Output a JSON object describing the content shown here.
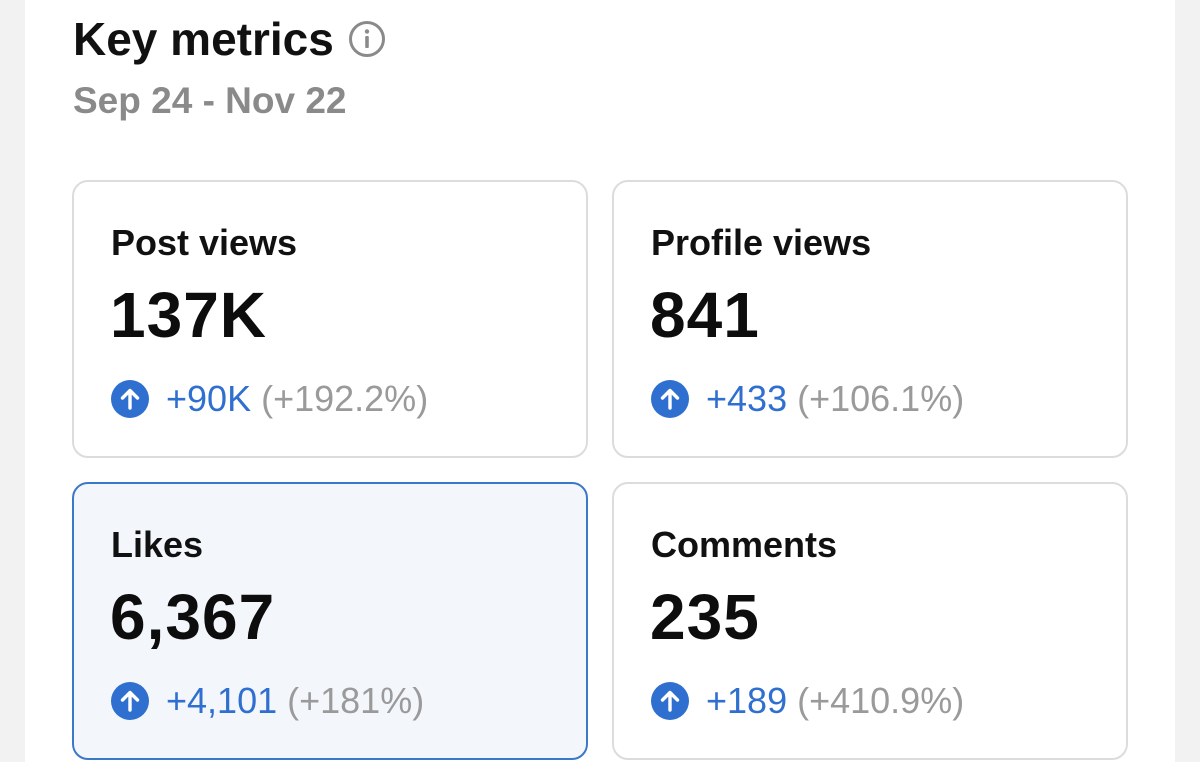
{
  "header": {
    "title": "Key metrics",
    "info_icon": "info-circle-icon",
    "date_range": "Sep 24 - Nov 22"
  },
  "colors": {
    "accent": "#2f6fcf",
    "selected_border": "#3b78c8",
    "selected_background": "#f3f7fc",
    "muted_text": "#9a9a9a"
  },
  "metrics": [
    {
      "label": "Post views",
      "value": "137K",
      "delta_icon": "arrow-up-circle-icon",
      "delta": "+90K",
      "delta_percent": "(+192.2%)",
      "selected": false
    },
    {
      "label": "Profile views",
      "value": "841",
      "delta_icon": "arrow-up-circle-icon",
      "delta": "+433",
      "delta_percent": "(+106.1%)",
      "selected": false
    },
    {
      "label": "Likes",
      "value": "6,367",
      "delta_icon": "arrow-up-circle-icon",
      "delta": "+4,101",
      "delta_percent": "(+181%)",
      "selected": true
    },
    {
      "label": "Comments",
      "value": "235",
      "delta_icon": "arrow-up-circle-icon",
      "delta": "+189",
      "delta_percent": "(+410.9%)",
      "selected": false
    }
  ]
}
